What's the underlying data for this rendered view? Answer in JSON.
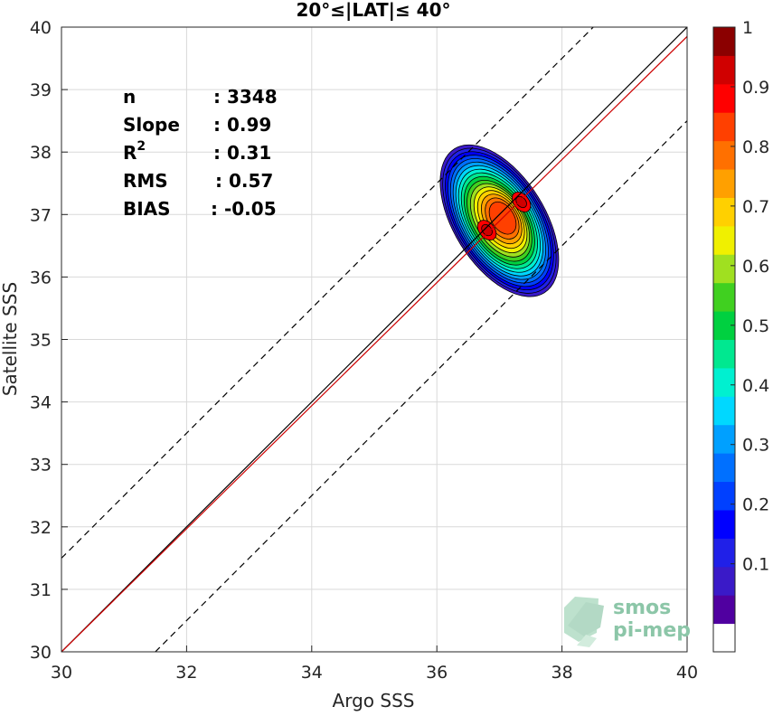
{
  "chart_data": {
    "type": "contour",
    "title": "20°≤|LAT|≤ 40°",
    "xlabel": "Argo SSS",
    "ylabel": "Satellite SSS",
    "xlim": [
      30,
      40
    ],
    "ylim": [
      30,
      40
    ],
    "xticks": [
      "30",
      "32",
      "34",
      "36",
      "38",
      "40"
    ],
    "yticks": [
      "30",
      "31",
      "32",
      "33",
      "34",
      "35",
      "36",
      "37",
      "38",
      "39",
      "40"
    ],
    "grid": true,
    "reference_lines": [
      {
        "name": "1:1 line",
        "color": "#000000",
        "style": "solid",
        "x": [
          30,
          40
        ],
        "y": [
          30,
          40
        ]
      },
      {
        "name": "regression fit",
        "color": "#cc0000",
        "style": "solid",
        "x": [
          30,
          40
        ],
        "y": [
          30,
          39.85
        ]
      },
      {
        "name": "upper bound",
        "color": "#000000",
        "style": "dashed",
        "x": [
          30,
          38.5
        ],
        "y": [
          31.5,
          40
        ]
      },
      {
        "name": "lower bound",
        "color": "#000000",
        "style": "dashed",
        "x": [
          31.5,
          40
        ],
        "y": [
          30,
          38.5
        ]
      }
    ],
    "density": {
      "center": [
        37.0,
        36.9
      ],
      "peaks": [
        [
          36.8,
          36.75
        ],
        [
          37.35,
          37.2
        ]
      ],
      "levels": [
        0.05,
        0.1,
        0.15,
        0.2,
        0.25,
        0.3,
        0.35,
        0.4,
        0.45,
        0.5,
        0.55,
        0.6,
        0.65,
        0.7,
        0.75,
        0.8,
        0.85,
        0.9,
        0.95
      ],
      "outer_extent_x": [
        36.1,
        37.8
      ],
      "outer_extent_y": [
        35.4,
        38.45
      ]
    },
    "stats": [
      {
        "label": "n",
        "value": ": 3348"
      },
      {
        "label": "Slope",
        "value": ": 0.99"
      },
      {
        "label": "R",
        "sup": "2",
        "value": ": 0.31"
      },
      {
        "label": "RMS",
        "value": ": 0.57"
      },
      {
        "label": "BIAS",
        "value": ": -0.05"
      }
    ],
    "colorbar": {
      "range": [
        0,
        1
      ],
      "ticks": [
        "0.1",
        "0.2",
        "0.3",
        "0.4",
        "0.5",
        "0.6",
        "0.7",
        "0.8",
        "0.9",
        "1"
      ],
      "colors": [
        "#ffffff",
        "#5000a0",
        "#3a1ac8",
        "#2020e8",
        "#0000ff",
        "#0040ff",
        "#0070ff",
        "#00a0ff",
        "#00d8ff",
        "#00f0d0",
        "#00e890",
        "#00d040",
        "#40d020",
        "#a0e020",
        "#f0f000",
        "#ffd000",
        "#ffa000",
        "#ff7000",
        "#ff4000",
        "#ff0000",
        "#d00000",
        "#8b0000"
      ]
    },
    "logo": {
      "line1": "smos",
      "line2": "pi-mep"
    }
  }
}
